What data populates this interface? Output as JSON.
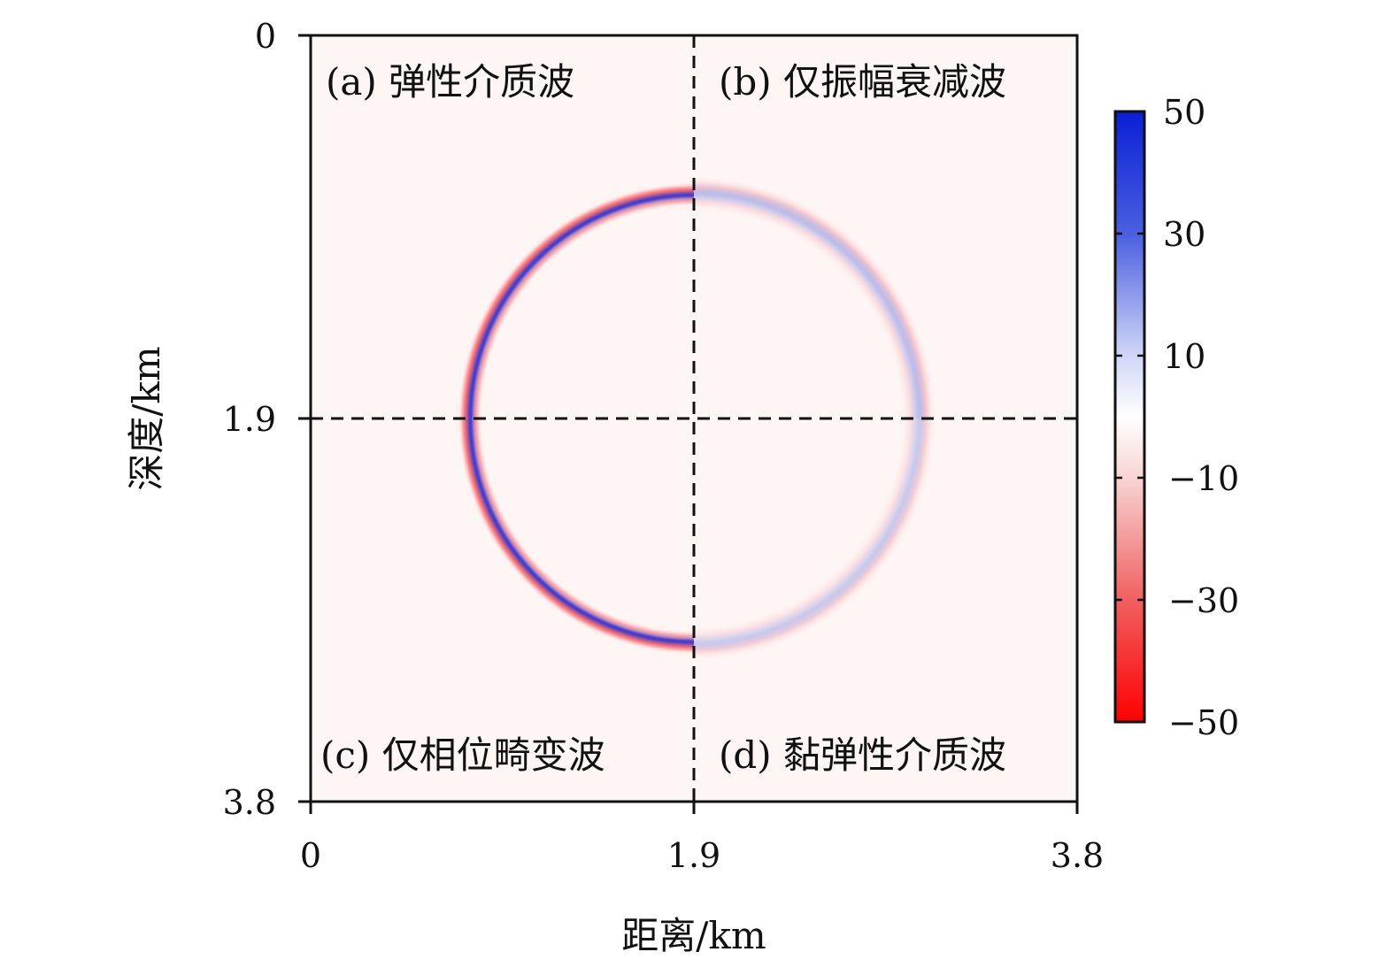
{
  "chart_data": {
    "type": "heatmap",
    "xlabel": "距离/km",
    "ylabel": "深度/km",
    "xlim": [
      0,
      3.8
    ],
    "ylim": [
      0,
      3.8
    ],
    "y_inverted": true,
    "xticks": [
      "0",
      "1.9",
      "3.8"
    ],
    "yticks": [
      "0",
      "1.9",
      "3.8"
    ],
    "divider_lines": {
      "x": 1.9,
      "y": 1.9,
      "style": "dashed"
    },
    "panels": [
      {
        "id": "a",
        "label": "(a) 弹性介质波",
        "quadrant": "top-left"
      },
      {
        "id": "b",
        "label": "(b) 仅振幅衰减波",
        "quadrant": "top-right"
      },
      {
        "id": "c",
        "label": "(c) 仅相位畸变波",
        "quadrant": "bottom-left"
      },
      {
        "id": "d",
        "label": "(d) 黏弹性介质波",
        "quadrant": "bottom-right"
      }
    ],
    "wavefront": {
      "shape": "circle",
      "center": [
        1.9,
        1.9
      ],
      "radius": 1.09,
      "peak_amplitude": {
        "a": 50,
        "b": 25,
        "c": 50,
        "d": 20
      }
    },
    "colorbar": {
      "min": -50,
      "max": 50,
      "ticks": [
        "50",
        "30",
        "10",
        "−10",
        "−30",
        "−50"
      ],
      "colors": {
        "max": "#0a1fd6",
        "zero": "#ffffff",
        "min": "#ff0000"
      }
    }
  }
}
